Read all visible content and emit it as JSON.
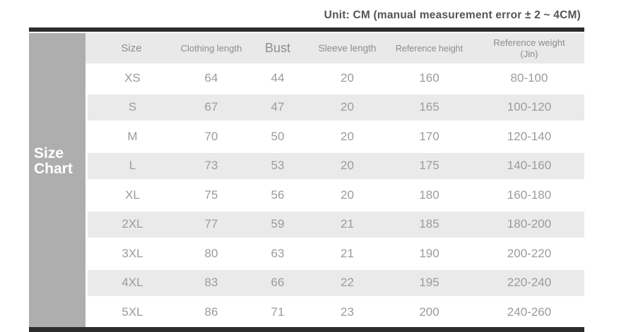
{
  "unit_note": "Unit: CM (manual measurement error ± 2 ~ 4CM)",
  "sidebar": {
    "title": "Size Chart"
  },
  "table": {
    "headers": [
      "Size",
      "Clothing length",
      "Bust",
      "Sleeve length",
      "Reference height",
      "Reference weight (Jin)"
    ],
    "rows": [
      [
        "XS",
        "64",
        "44",
        "20",
        "160",
        "80-100"
      ],
      [
        "S",
        "67",
        "47",
        "20",
        "165",
        "100-120"
      ],
      [
        "M",
        "70",
        "50",
        "20",
        "170",
        "120-140"
      ],
      [
        "L",
        "73",
        "53",
        "20",
        "175",
        "140-160"
      ],
      [
        "XL",
        "75",
        "56",
        "20",
        "180",
        "160-180"
      ],
      [
        "2XL",
        "77",
        "59",
        "21",
        "185",
        "180-200"
      ],
      [
        "3XL",
        "80",
        "63",
        "21",
        "190",
        "200-220"
      ],
      [
        "4XL",
        "83",
        "66",
        "22",
        "195",
        "220-240"
      ],
      [
        "5XL",
        "86",
        "71",
        "23",
        "200",
        "240-260"
      ]
    ]
  },
  "colors": {
    "bar": "#2c2c2c",
    "sidebar_bg": "#aeaeae",
    "header_bg": "#e9e9e9",
    "row_alt_bg": "#eaeaea",
    "value_text": "#9b9b9b",
    "note_text": "#555555"
  }
}
